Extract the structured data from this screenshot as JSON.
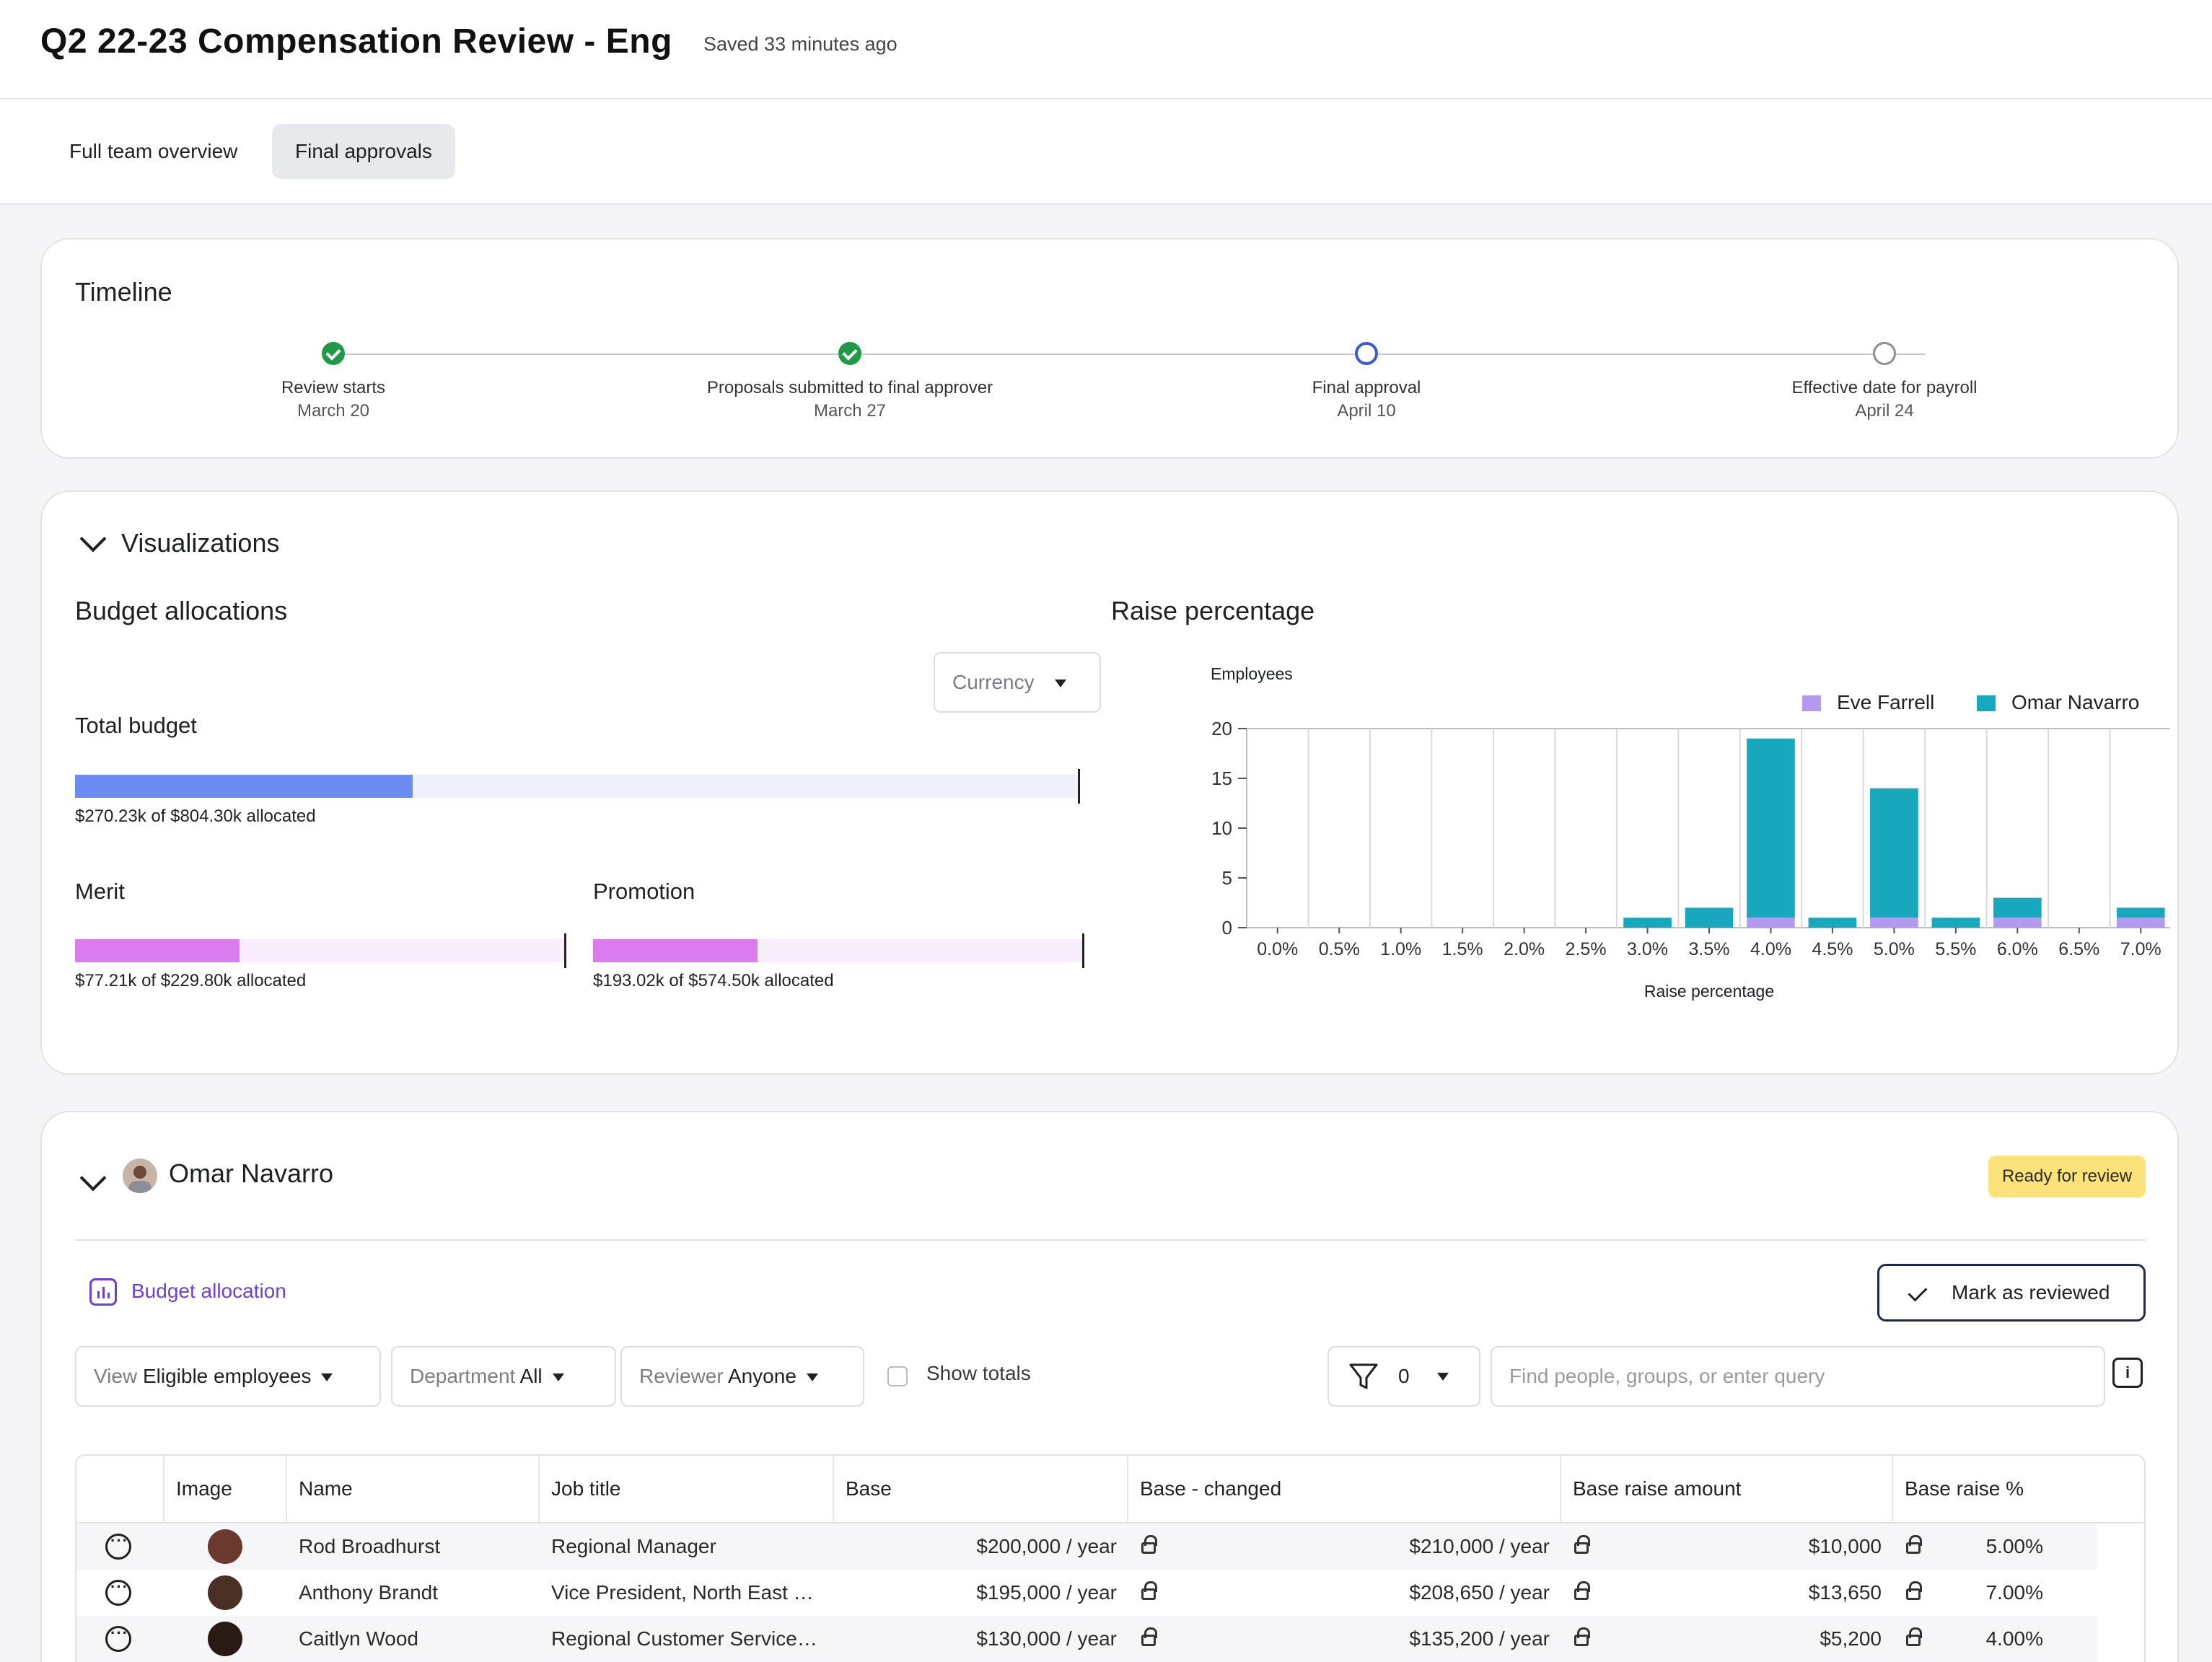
{
  "header": {
    "title": "Q2 22-23 Compensation Review - Eng",
    "saved": "Saved 33 minutes ago"
  },
  "tabs": [
    {
      "label": "Full team overview",
      "active": false
    },
    {
      "label": "Final approvals",
      "active": true
    }
  ],
  "timeline": {
    "title": "Timeline",
    "steps": [
      {
        "label": "Review starts",
        "date": "March 20",
        "status": "done"
      },
      {
        "label": "Proposals submitted to final approver",
        "date": "March 27",
        "status": "done"
      },
      {
        "label": "Final approval",
        "date": "April 10",
        "status": "current"
      },
      {
        "label": "Effective date for payroll",
        "date": "April 24",
        "status": "future"
      }
    ]
  },
  "visualizations": {
    "title": "Visualizations",
    "budget": {
      "title": "Budget allocations",
      "currency_select": "Currency",
      "total": {
        "label": "Total budget",
        "text": "$270.23k of $804.30k allocated",
        "fraction": 0.336
      },
      "merit": {
        "label": "Merit",
        "text": "$77.21k of $229.80k allocated",
        "fraction": 0.336
      },
      "promotion": {
        "label": "Promotion",
        "text": "$193.02k of $574.50k allocated",
        "fraction": 0.336
      }
    },
    "raise_chart_title": "Raise percentage"
  },
  "chart_data": {
    "type": "bar",
    "stacked": true,
    "ylabel": "Employees",
    "xlabel": "Raise percentage",
    "ylim": [
      0,
      20
    ],
    "yticks": [
      0,
      5,
      10,
      15,
      20
    ],
    "categories": [
      "0.0%",
      "0.5%",
      "1.0%",
      "1.5%",
      "2.0%",
      "2.5%",
      "3.0%",
      "3.5%",
      "4.0%",
      "4.5%",
      "5.0%",
      "5.5%",
      "6.0%",
      "6.5%",
      "7.0%"
    ],
    "series": [
      {
        "name": "Eve Farrell",
        "color": "#b39af0",
        "values": [
          0,
          0,
          0,
          0,
          0,
          0,
          0,
          0,
          1,
          0,
          1,
          0,
          1,
          0,
          1
        ]
      },
      {
        "name": "Omar Navarro",
        "color": "#17a8bd",
        "values": [
          0,
          0,
          0,
          0,
          0,
          0,
          1,
          2,
          18,
          1,
          13,
          1,
          2,
          0,
          1
        ]
      }
    ],
    "grid": true,
    "legend": "top-right"
  },
  "omar": {
    "name": "Omar Navarro",
    "badge": "Ready for review",
    "budget_link": "Budget allocation",
    "mark_button": "Mark as reviewed",
    "filters": {
      "view_label": "View",
      "view_value": "Eligible employees",
      "dept_label": "Department",
      "dept_value": "All",
      "reviewer_label": "Reviewer",
      "reviewer_value": "Anyone",
      "show_totals": "Show totals",
      "filter_count": "0"
    },
    "search_placeholder": "Find people, groups, or enter query"
  },
  "table": {
    "columns": [
      "Image",
      "Name",
      "Job title",
      "Base",
      "Base - changed",
      "Base raise amount",
      "Base raise %"
    ],
    "rows": [
      {
        "name": "Rod Broadhurst",
        "job": "Regional Manager",
        "base": "$200,000 / year",
        "base_changed": "$210,000 / year",
        "raise_amount": "$10,000",
        "raise_pct": "5.00%"
      },
      {
        "name": "Anthony Brandt",
        "job": "Vice President, North East …",
        "base": "$195,000 / year",
        "base_changed": "$208,650 / year",
        "raise_amount": "$13,650",
        "raise_pct": "7.00%"
      },
      {
        "name": "Caitlyn Wood",
        "job": "Regional Customer Service…",
        "base": "$130,000 / year",
        "base_changed": "$135,200 / year",
        "raise_amount": "$5,200",
        "raise_pct": "4.00%"
      }
    ]
  },
  "colors": {
    "total_fill": "#6c8cf4",
    "total_track": "#eef1fd",
    "merit_fill": "#dc7af0",
    "merit_track": "#f8eefb",
    "badge": "#fbe37a",
    "accent_purple": "#6b3fd8"
  }
}
